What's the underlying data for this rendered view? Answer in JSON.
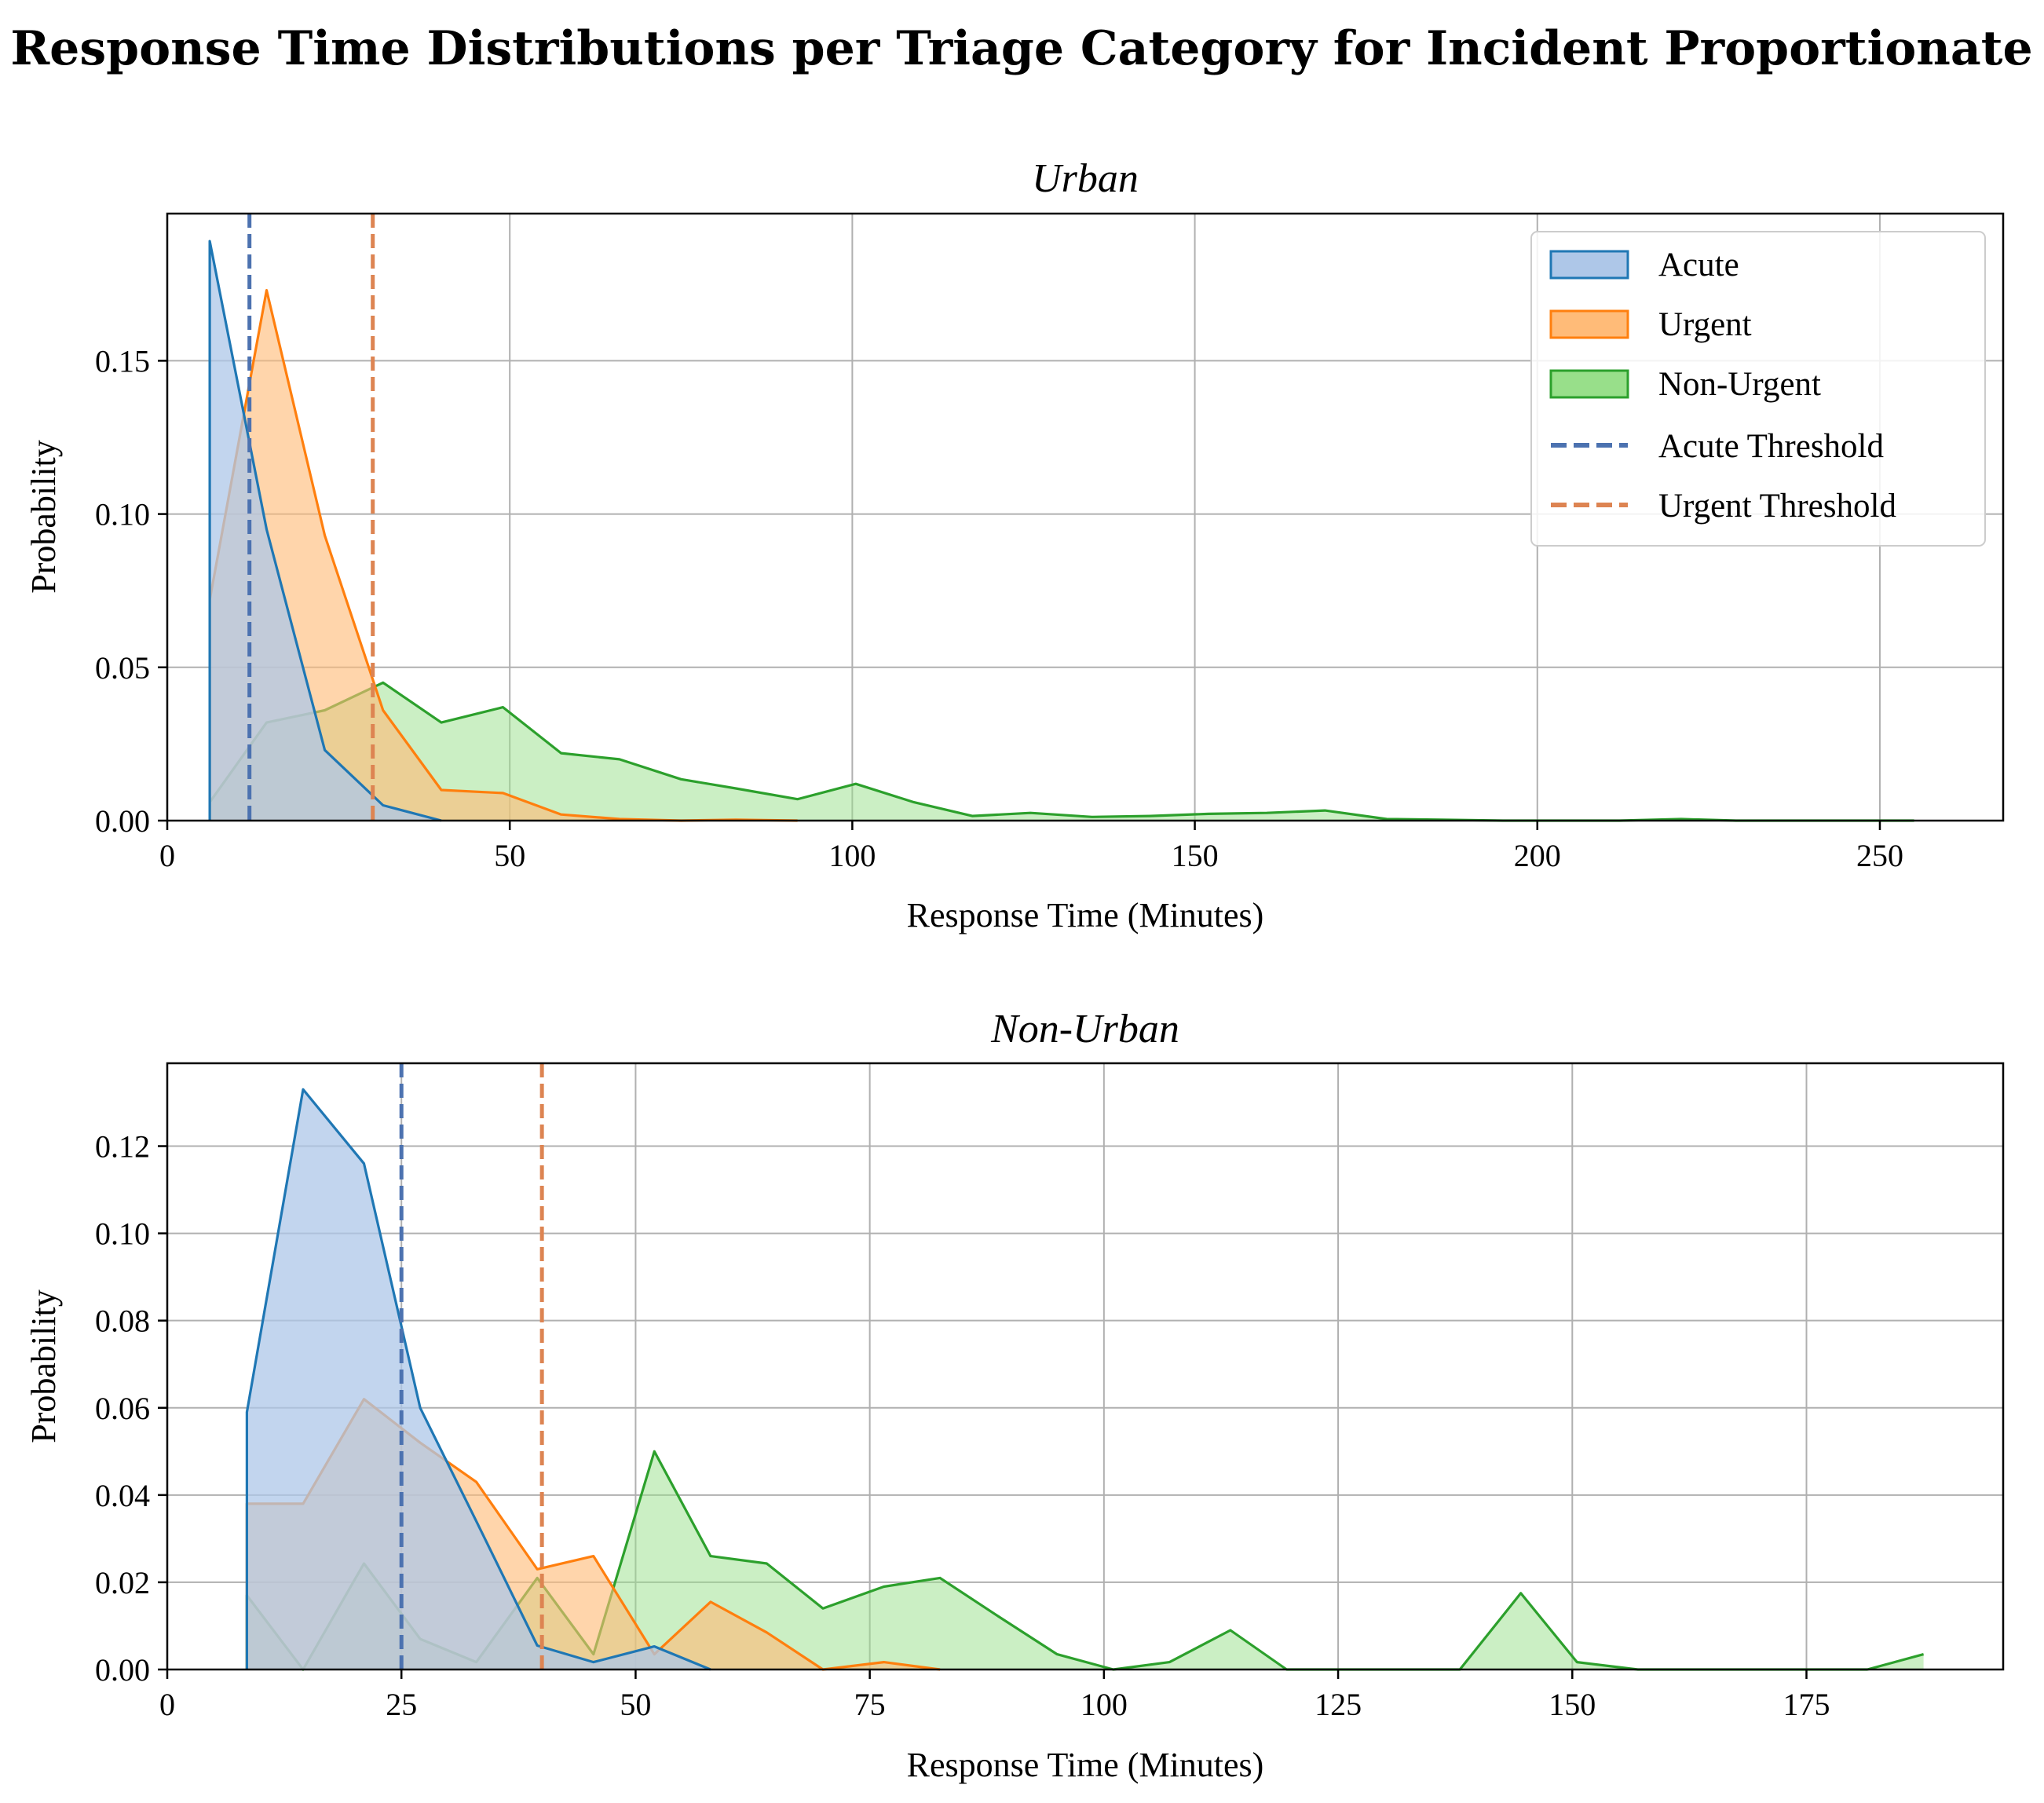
{
  "figure": {
    "title": "Response Time Distributions per Triage Category for Incident Proportionate"
  },
  "legend": {
    "entries": [
      "Acute",
      "Urgent",
      "Non-Urgent",
      "Acute Threshold",
      "Urgent Threshold"
    ],
    "placement": "top-right"
  },
  "colors": {
    "acute": "#1f77b4",
    "urgent": "#ff7f0e",
    "non_urgent": "#2ca02c",
    "acute_threshold": "#4c72b0",
    "urgent_threshold": "#dd8452"
  },
  "chart_data": [
    {
      "type": "area",
      "title": "Urban",
      "xlabel": "Response Time (Minutes)",
      "ylabel": "Probability",
      "xlim": [
        0,
        268
      ],
      "ylim": [
        0,
        0.198
      ],
      "xticks": [
        0,
        50,
        100,
        150,
        200,
        250
      ],
      "yticks": [
        0.0,
        0.05,
        0.1,
        0.15
      ],
      "ytick_labels": [
        "0.00",
        "0.05",
        "0.10",
        "0.15"
      ],
      "grid": true,
      "thresholds": [
        {
          "name": "Acute Threshold",
          "x": 12
        },
        {
          "name": "Urgent Threshold",
          "x": 30
        }
      ],
      "series": [
        {
          "name": "Acute",
          "color_key": "acute",
          "x": [
            6.2,
            14.5,
            23,
            31.5,
            40
          ],
          "y": [
            0.189,
            0.095,
            0.023,
            0.005,
            0.0
          ]
        },
        {
          "name": "Urgent",
          "color_key": "urgent",
          "x": [
            6.2,
            14.5,
            23,
            31.5,
            40,
            49,
            57.5,
            66,
            75,
            83,
            92
          ],
          "y": [
            0.072,
            0.173,
            0.093,
            0.036,
            0.01,
            0.009,
            0.002,
            0.0005,
            0.0,
            0.0003,
            0.0
          ]
        },
        {
          "name": "Non-Urgent",
          "color_key": "non_urgent",
          "x": [
            6.2,
            14.5,
            23,
            31.5,
            40,
            49,
            57.5,
            66,
            75,
            83,
            92,
            100.5,
            109,
            117.5,
            126,
            135,
            143.5,
            152,
            160.5,
            169,
            178,
            186,
            195,
            203.5,
            212,
            221,
            229,
            238,
            246.5,
            255
          ],
          "y": [
            0.006,
            0.032,
            0.036,
            0.045,
            0.032,
            0.037,
            0.022,
            0.02,
            0.0135,
            0.0105,
            0.007,
            0.012,
            0.006,
            0.0015,
            0.0025,
            0.0012,
            0.0015,
            0.0022,
            0.0025,
            0.0033,
            0.0005,
            0.0003,
            0.0,
            0.0,
            0.0,
            0.0005,
            0.0,
            0.0,
            0.0,
            0.0
          ]
        }
      ]
    },
    {
      "type": "area",
      "title": "Non-Urban",
      "xlabel": "Response Time (Minutes)",
      "ylabel": "Probability",
      "xlim": [
        0,
        196
      ],
      "ylim": [
        0,
        0.139
      ],
      "xticks": [
        0,
        25,
        50,
        75,
        100,
        125,
        150,
        175
      ],
      "yticks": [
        0.0,
        0.02,
        0.04,
        0.06,
        0.08,
        0.1,
        0.12
      ],
      "ytick_labels": [
        "0.00",
        "0.02",
        "0.04",
        "0.06",
        "0.08",
        "0.10",
        "0.12"
      ],
      "grid": true,
      "thresholds": [
        {
          "name": "Acute Threshold",
          "x": 25
        },
        {
          "name": "Urgent Threshold",
          "x": 40
        }
      ],
      "series": [
        {
          "name": "Acute",
          "color_key": "acute",
          "x": [
            8.5,
            14.5,
            21,
            27,
            33,
            39.5,
            45.5,
            52,
            58
          ],
          "y": [
            0.059,
            0.133,
            0.116,
            0.06,
            0.034,
            0.0055,
            0.0017,
            0.0053,
            0.0
          ]
        },
        {
          "name": "Urgent",
          "color_key": "urgent",
          "x": [
            8.5,
            14.5,
            21,
            27,
            33,
            39.5,
            45.5,
            52,
            58,
            64,
            70,
            76.5,
            82.5
          ],
          "y": [
            0.038,
            0.038,
            0.062,
            0.052,
            0.043,
            0.023,
            0.026,
            0.0035,
            0.0155,
            0.0085,
            0.0,
            0.0017,
            0.0
          ]
        },
        {
          "name": "Non-Urgent",
          "color_key": "non_urgent",
          "x": [
            8.5,
            14.5,
            21,
            27,
            33,
            39.5,
            45.5,
            52,
            58,
            64,
            70,
            76.5,
            82.5,
            88.5,
            95,
            101,
            107,
            113.5,
            119.5,
            126,
            132,
            138,
            144.5,
            150.5,
            157,
            163,
            169,
            175.5,
            181.5,
            187.5
          ],
          "y": [
            0.017,
            0.0,
            0.0243,
            0.007,
            0.0017,
            0.021,
            0.0035,
            0.05,
            0.026,
            0.0243,
            0.014,
            0.019,
            0.021,
            0.0125,
            0.0035,
            0.0,
            0.0017,
            0.009,
            0.0,
            0.0,
            0.0,
            0.0,
            0.0175,
            0.0017,
            0.0,
            0.0,
            0.0,
            0.0,
            0.0,
            0.0035
          ]
        }
      ]
    }
  ]
}
